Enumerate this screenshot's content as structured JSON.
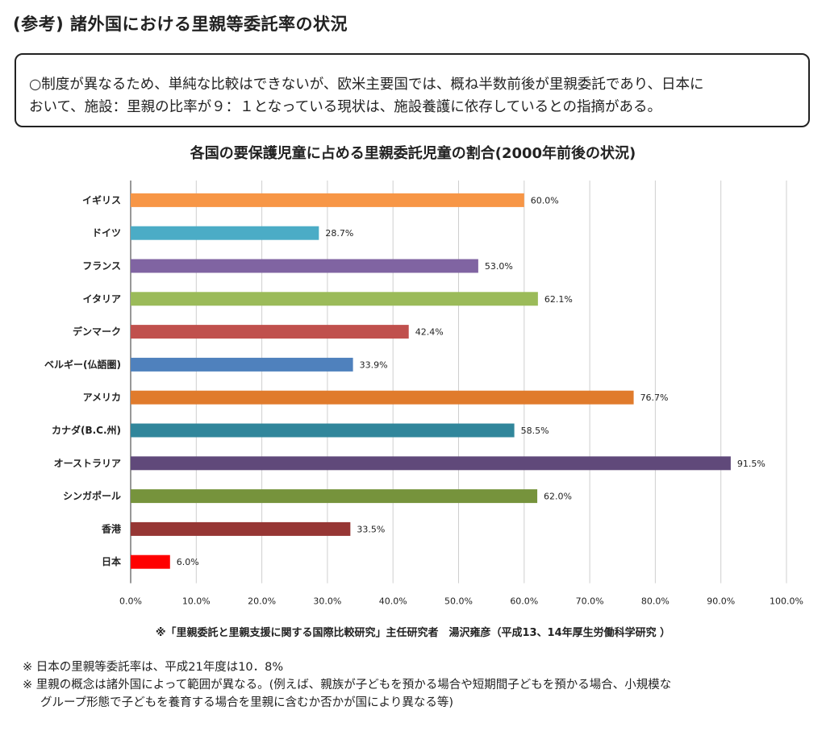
{
  "page": {
    "heading": "(参考) 諸外国における里親等委託率の状況",
    "note_line1": "○制度が異なるため、単純な比較はできないが、欧米主要国では、概ね半数前後が里親委託であり、日本に",
    "note_line2": "おいて、施設：里親の比率が９：１となっている現状は、施設養護に依存しているとの指摘がある。",
    "source": "※「里親委託と里親支援に関する国際比較研究」主任研究者　湯沢雍彦（平成13、14年厚生労働科学研究 ）",
    "footnote1": "※ 日本の里親等委託率は、平成21年度は10．8%",
    "footnote2": "※ 里親の概念は諸外国によって範囲が異なる。(例えば、親族が子どもを預かる場合や短期間子どもを預かる場合、小規模な",
    "footnote3": "グループ形態で子どもを養育する場合を里親に含むか否かが国により異なる等)"
  },
  "chart_data": {
    "type": "bar",
    "orientation": "horizontal",
    "title": "各国の要保護児童に占める里親委託児童の割合(2000年前後の状況)",
    "categories": [
      "イギリス",
      "ドイツ",
      "フランス",
      "イタリア",
      "デンマーク",
      "ベルギー(仏語圏)",
      "アメリカ",
      "カナダ(B.C.州)",
      "オーストラリア",
      "シンガポール",
      "香港",
      "日本"
    ],
    "values": [
      60.0,
      28.7,
      53.0,
      62.1,
      42.4,
      33.9,
      76.7,
      58.5,
      91.5,
      62.0,
      33.5,
      6.0
    ],
    "value_labels": [
      "60.0%",
      "28.7%",
      "53.0%",
      "62.1%",
      "42.4%",
      "33.9%",
      "76.7%",
      "58.5%",
      "91.5%",
      "62.0%",
      "33.5%",
      "6.0%"
    ],
    "colors": [
      "#f79646",
      "#4bacc6",
      "#8064a2",
      "#9bbb59",
      "#c0504d",
      "#4f81bd",
      "#e07b2c",
      "#31869b",
      "#60497a",
      "#76933c",
      "#963634",
      "#ff0000"
    ],
    "xlim": [
      0,
      100
    ],
    "ticks": [
      "0.0%",
      "10.0%",
      "20.0%",
      "30.0%",
      "40.0%",
      "50.0%",
      "60.0%",
      "70.0%",
      "80.0%",
      "90.0%",
      "100.0%"
    ],
    "grid": "vertical",
    "legend": "none"
  }
}
